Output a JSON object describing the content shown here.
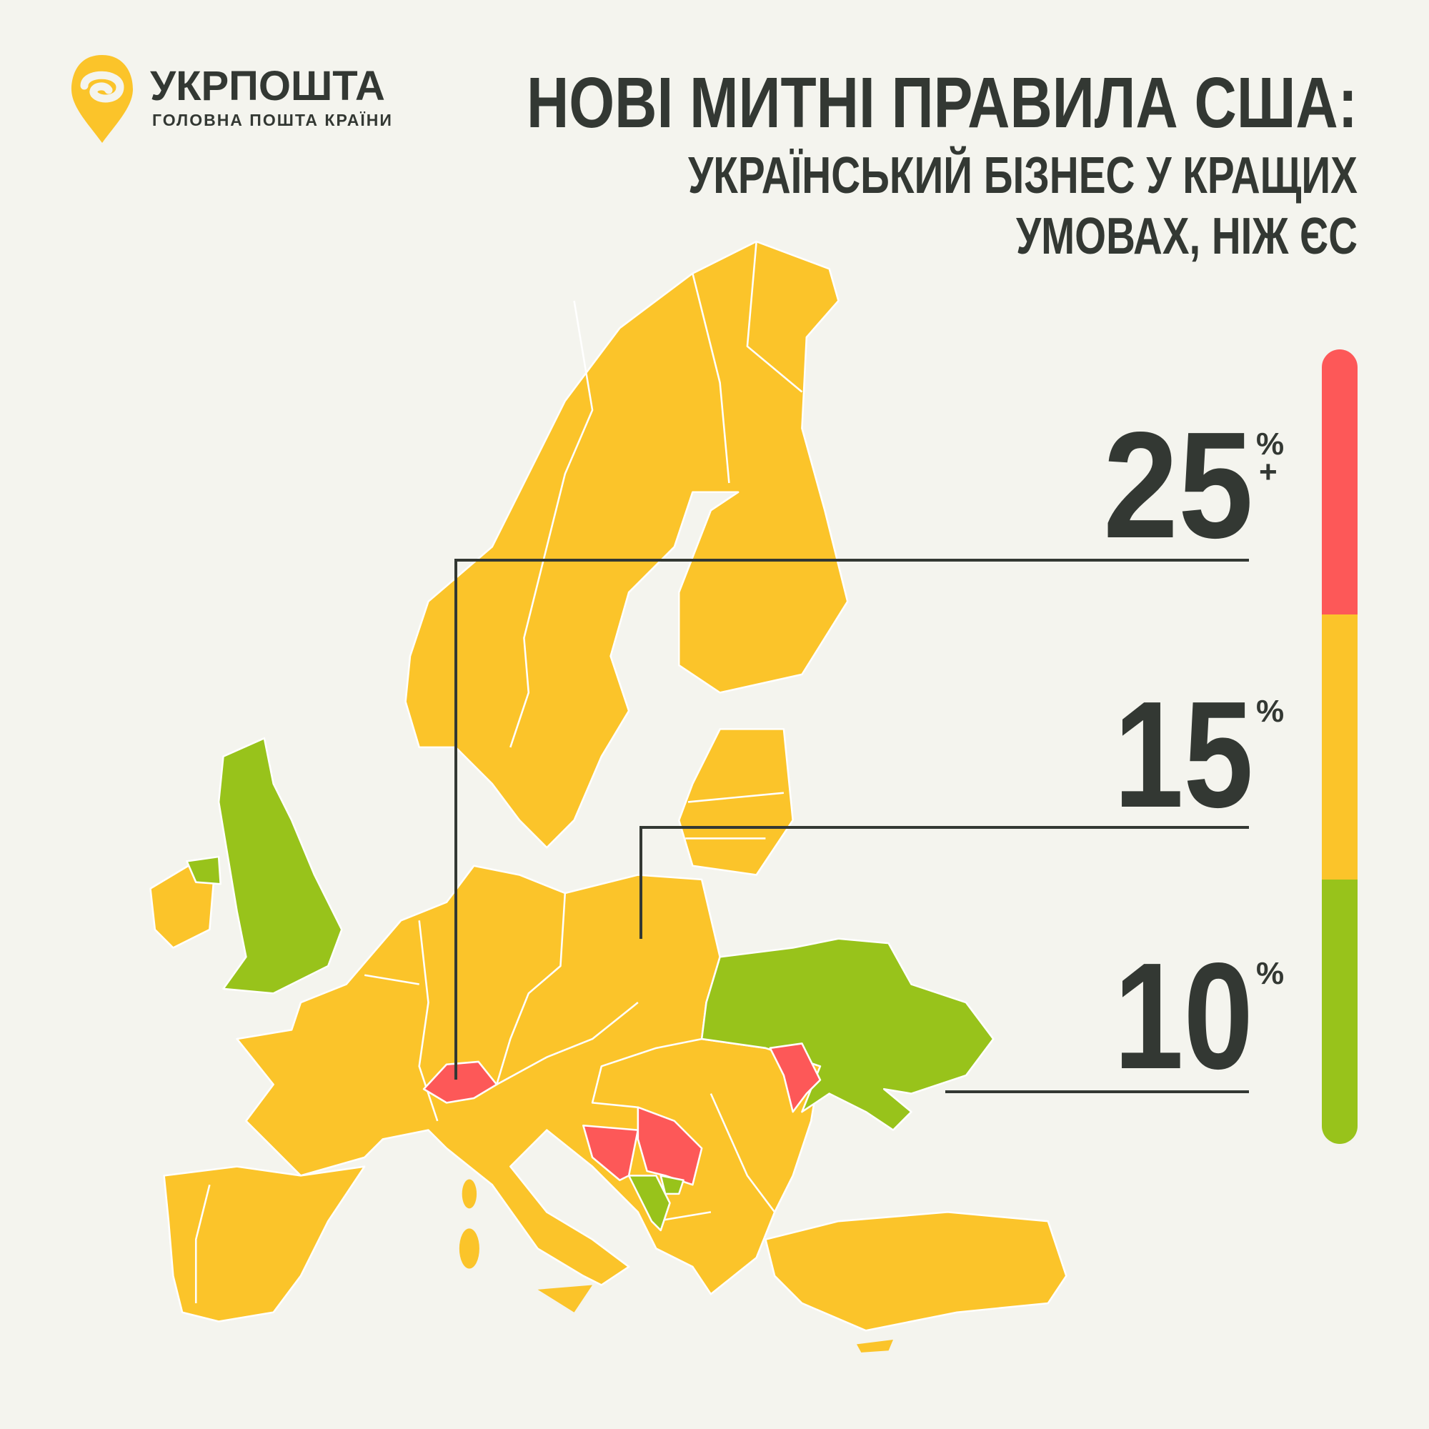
{
  "logo": {
    "name": "УКРПОШТА",
    "tagline": "ГОЛОВНА ПОШТА КРАЇНИ"
  },
  "header": {
    "title": "НОВІ МИТНІ ПРАВИЛА США:",
    "subtitle": [
      "УКРАЇНСЬКИЙ БІЗНЕС У КРАЩИХ",
      "УМОВАХ, НІЖ ЄС"
    ]
  },
  "legend": [
    {
      "value": 25,
      "unit": "%",
      "extra": "+"
    },
    {
      "value": 15,
      "unit": "%"
    },
    {
      "value": 10,
      "unit": "%"
    }
  ]
}
